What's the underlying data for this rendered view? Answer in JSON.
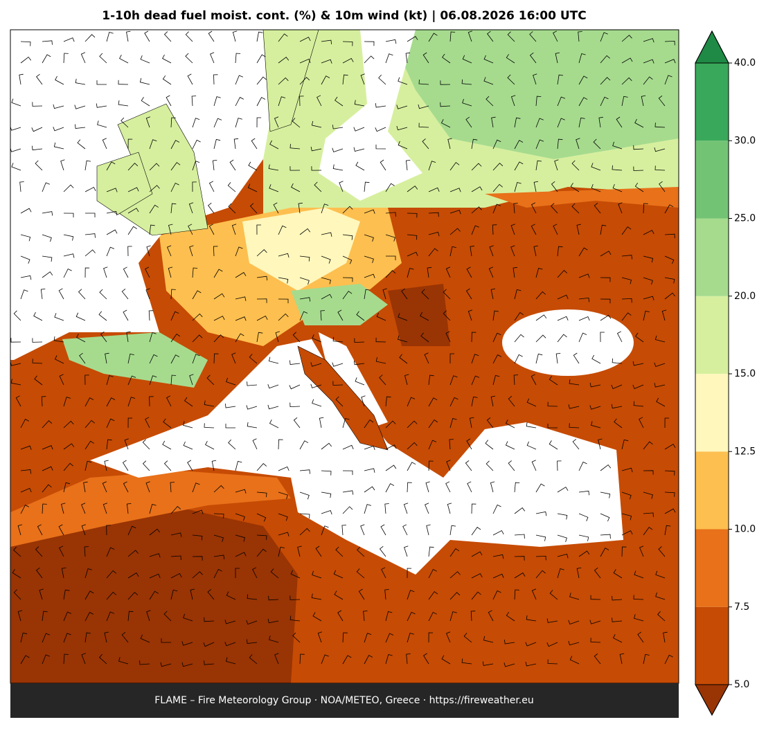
{
  "header": {
    "title": "1-10h dead fuel moist. cont. (%) & 10m wind (kt)  |  06.08.2026 16:00 UTC"
  },
  "colorbar": {
    "levels": [
      {
        "value": 5,
        "label": "5.0"
      },
      {
        "value": 7.5,
        "label": "7.5"
      },
      {
        "value": 10,
        "label": "10.0"
      },
      {
        "value": 12.5,
        "label": "12.5"
      },
      {
        "value": 15,
        "label": "15.0"
      },
      {
        "value": 20,
        "label": "20.0"
      },
      {
        "value": 25,
        "label": "25.0"
      },
      {
        "value": 30,
        "label": "30.0"
      },
      {
        "value": 40,
        "label": "40.0"
      }
    ],
    "colors": [
      "#c64b04",
      "#e8711a",
      "#fdbf4f",
      "#fff7bc",
      "#d6ef9e",
      "#a6db8e",
      "#73c375",
      "#3aa85a"
    ],
    "under_color": "#993404",
    "over_color": "#1e8a45"
  },
  "footer": {
    "credit": "FLAME – Fire Meteorology Group · NOA/METEO, Greece · https://fireweather.eu"
  }
}
